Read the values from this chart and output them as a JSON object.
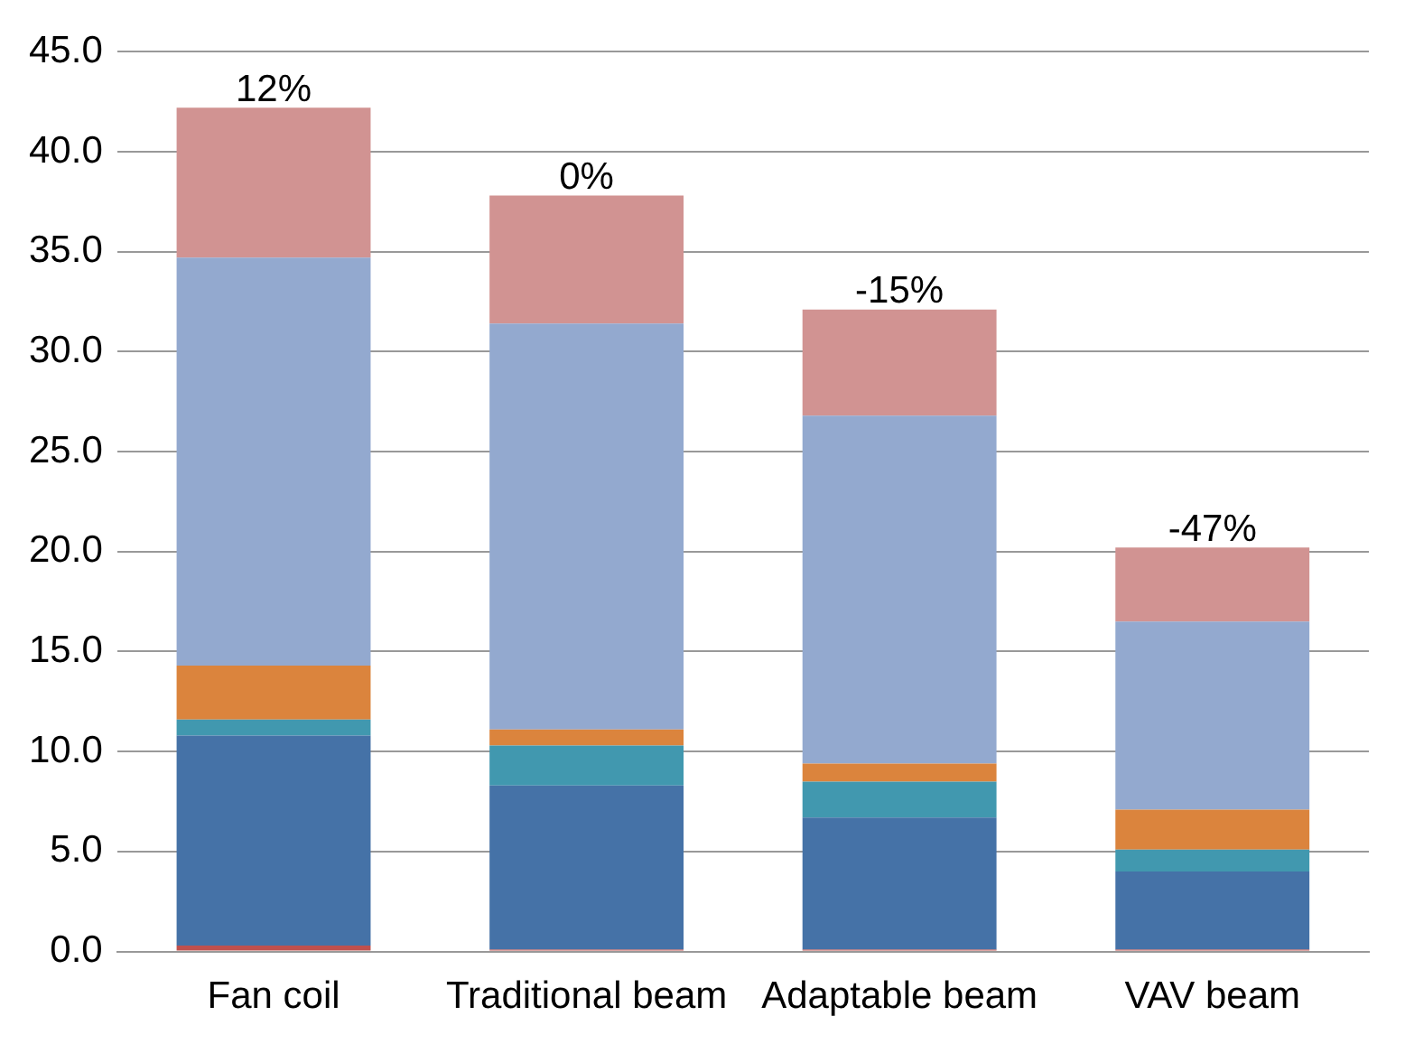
{
  "chart_data": {
    "type": "bar",
    "stacked": true,
    "categories": [
      "Fan coil",
      "Traditional beam",
      "Adaptable beam",
      "VAV beam"
    ],
    "series": [
      {
        "color": "#c0504d",
        "values": [
          0.3,
          0.1,
          0.1,
          0.1
        ]
      },
      {
        "color": "#4572a7",
        "values": [
          10.5,
          8.2,
          6.6,
          3.9
        ]
      },
      {
        "color": "#4198af",
        "values": [
          0.8,
          2.0,
          1.8,
          1.1
        ]
      },
      {
        "color": "#db843d",
        "values": [
          2.7,
          0.8,
          0.9,
          2.0
        ]
      },
      {
        "color": "#93a9cf",
        "values": [
          20.4,
          20.3,
          17.4,
          9.4
        ]
      },
      {
        "color": "#d19392",
        "values": [
          7.5,
          6.4,
          5.3,
          3.7
        ]
      }
    ],
    "annotations": [
      {
        "text": "12%",
        "x": "Fan coil",
        "y": 42.2
      },
      {
        "text": "0%",
        "x": "Traditional beam",
        "y": 37.8
      },
      {
        "text": "-15%",
        "x": "Adaptable beam",
        "y": 32.1
      },
      {
        "text": "-47%",
        "x": "VAV beam",
        "y": 20.2
      }
    ],
    "ylim": [
      0,
      45
    ],
    "yticks": [
      {
        "value": 0,
        "label": "0.0"
      },
      {
        "value": 5,
        "label": "5.0"
      },
      {
        "value": 10,
        "label": "10.0"
      },
      {
        "value": 15,
        "label": "15.0"
      },
      {
        "value": 20,
        "label": "20.0"
      },
      {
        "value": 25,
        "label": "25.0"
      },
      {
        "value": 30,
        "label": "30.0"
      },
      {
        "value": 35,
        "label": "35.0"
      },
      {
        "value": 40,
        "label": "40.0"
      },
      {
        "value": 45,
        "label": "45.0"
      }
    ],
    "grid": "y",
    "legend": false
  }
}
